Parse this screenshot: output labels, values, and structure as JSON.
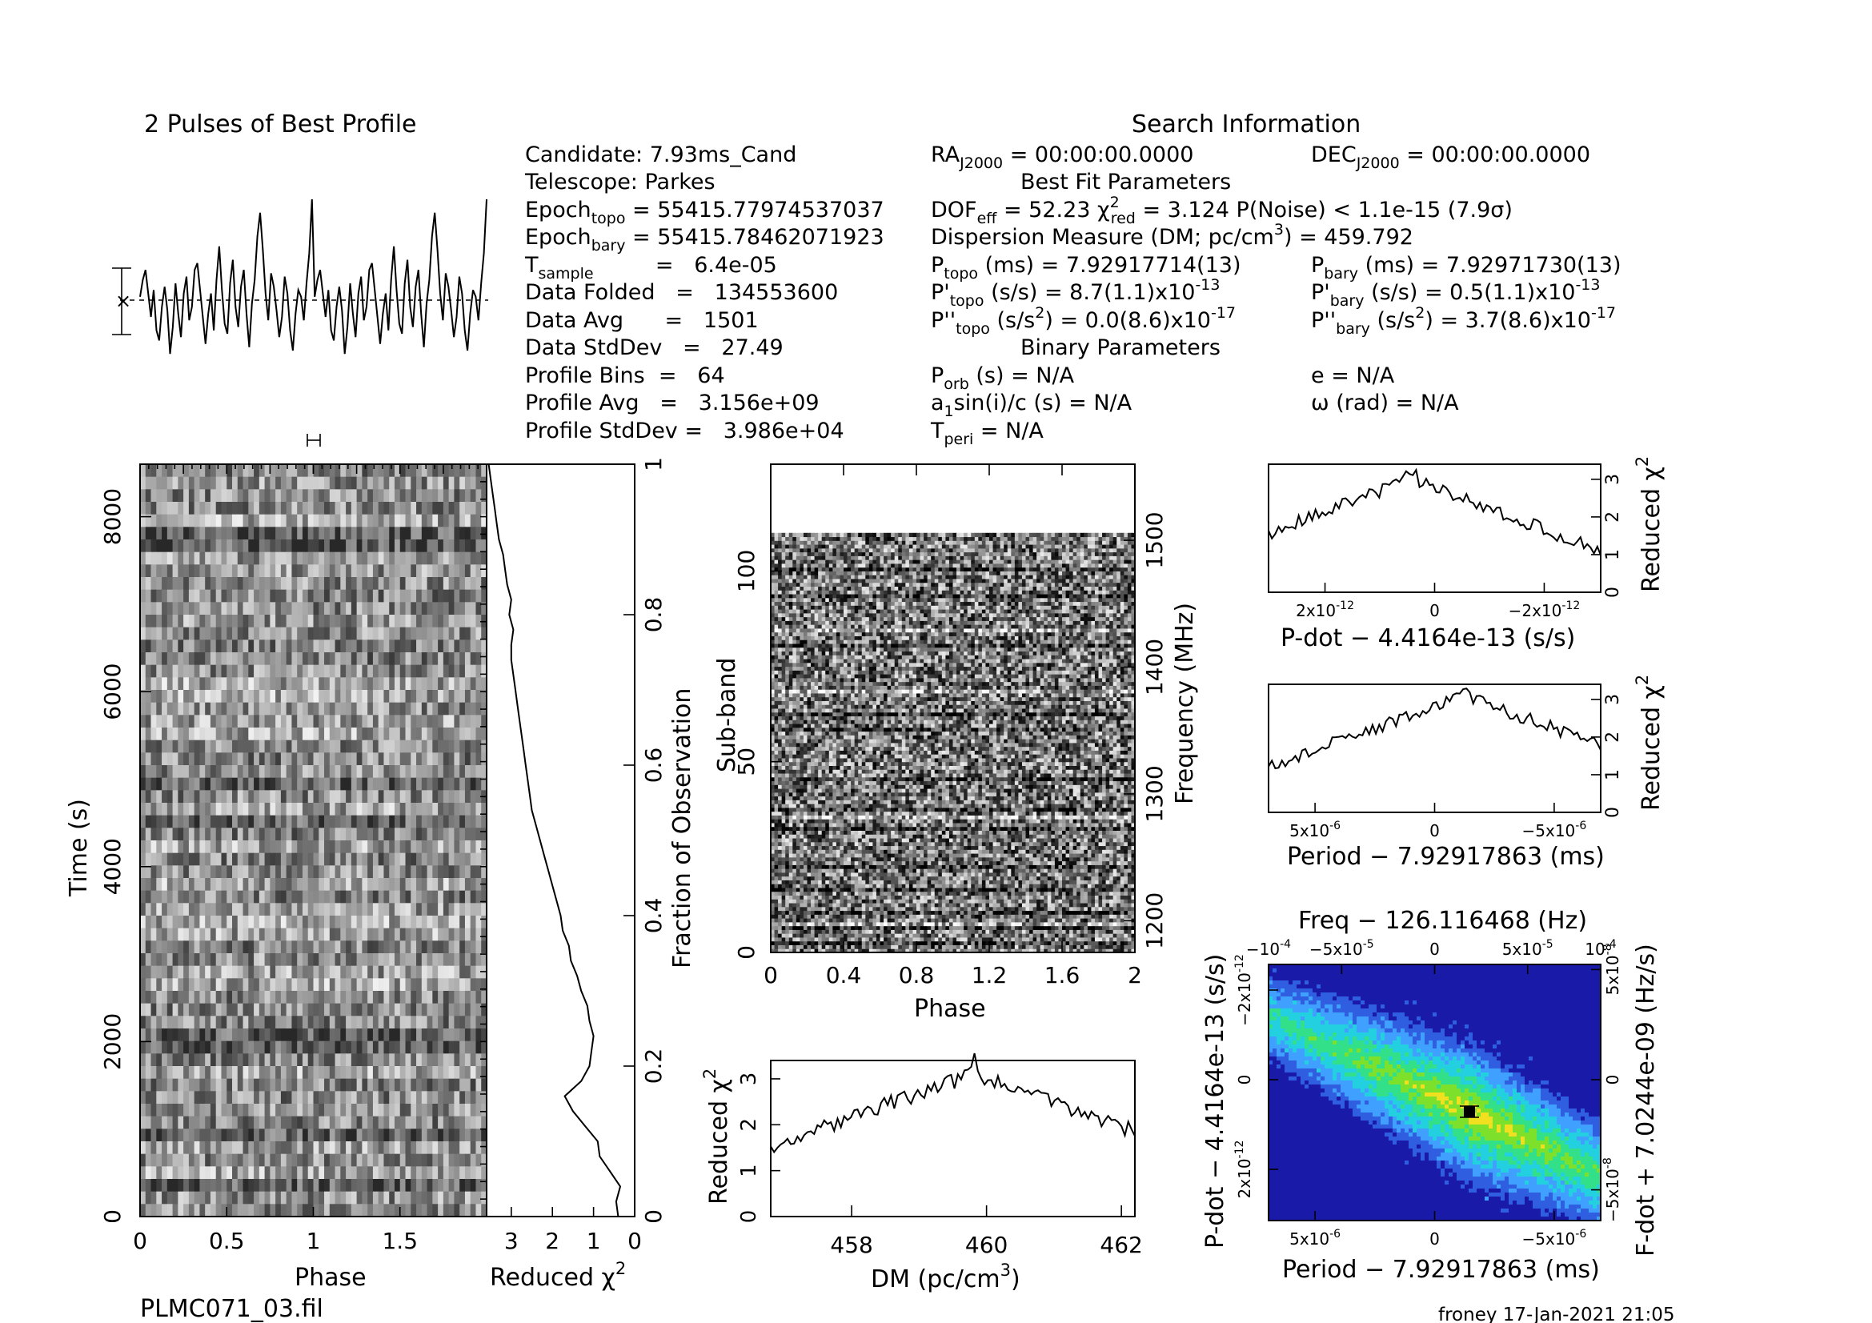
{
  "header": {
    "profile_title": "2 Pulses of Best Profile",
    "search_title": "Search Information",
    "best_fit_title": "Best Fit Parameters",
    "binary_title": "Binary Parameters",
    "filename": "PLMC071_03.fil",
    "footer_stamp": "froney 17-Jan-2021 21:05"
  },
  "info_left": [
    {
      "label": "Candidate:  7.93ms_Cand",
      "sub": ""
    },
    {
      "label": "Telescope:  Parkes",
      "sub": ""
    },
    {
      "label": "Epoch",
      "sub": "topo",
      "value": " = 55415.77974537037"
    },
    {
      "label": "Epoch",
      "sub": "bary",
      "value": " = 55415.78462071923"
    },
    {
      "label": "T",
      "sub": "sample",
      "value": "         =   6.4e-05"
    },
    {
      "label": "Data Folded",
      "sub": "",
      "value": "   =   134553600"
    },
    {
      "label": "Data Avg",
      "sub": "",
      "value": "      =   1501"
    },
    {
      "label": "Data StdDev",
      "sub": "",
      "value": "   =   27.49"
    },
    {
      "label": "Profile Bins",
      "sub": "",
      "value": "  =   64"
    },
    {
      "label": "Profile Avg",
      "sub": "",
      "value": "   =   3.156e+09"
    },
    {
      "label": "Profile StdDev",
      "sub": "",
      "value": " =   3.986e+04"
    }
  ],
  "info_right": {
    "ra": "RA",
    "ra_sub": "J2000",
    "ra_val": " = 00:00:00.0000",
    "dec": "DEC",
    "dec_sub": "J2000",
    "dec_val": " = 00:00:00.0000",
    "dof": "DOF",
    "dof_sub": "eff",
    "dof_val": " = 52.23  χ",
    "chi_sub": "red",
    "chi_val": " = 3.124  P(Noise) < 1.1e-15   (7.9σ)",
    "dm_line": "Dispersion Measure (DM; pc/cm",
    "dm_val": ") = 459.792",
    "ptopo": "P",
    "ptopo_sub": "topo",
    "ptopo_val": " (ms) =  7.92917714(13)",
    "pbary": "P",
    "pbary_sub": "bary",
    "pbary_val": " (ms) =  7.92971730(13)",
    "pdtopo": "P'",
    "pdtopo_sub": "topo",
    "pdtopo_val": " (s/s) =  8.7(1.1)x10",
    "pdtopo_exp": "-13",
    "pdbary": "P'",
    "pdbary_sub": "bary",
    "pdbary_val": " (s/s) =  0.5(1.1)x10",
    "pdbary_exp": "-13",
    "pddtopo": "P''",
    "pddtopo_sub": "topo",
    "pddtopo_val": " (s/s",
    "pddtopo_val2": ") = 0.0(8.6)x10",
    "pddtopo_exp": "-17",
    "pddbary": "P''",
    "pddbary_sub": "bary",
    "pddbary_val": " (s/s",
    "pddbary_val2": ") =  3.7(8.6)x10",
    "pddbary_exp": "-17",
    "porb": "P",
    "porb_sub": "orb",
    "porb_val": " (s) = N/A",
    "ecc": "e = N/A",
    "a1": "a",
    "a1_sub": "1",
    "a1_val": "sin(i)/c (s) = N/A",
    "omega": "ω (rad) = N/A",
    "tperi": "T",
    "tperi_sub": "peri",
    "tperi_val": " = N/A"
  },
  "chart_data": [
    {
      "id": "profile",
      "type": "line",
      "title": "2 Pulses of Best Profile",
      "x": "phase 0-2 (128 bins)",
      "note": "two repetitions of a 64-bin noisy profile",
      "values": [
        0.1,
        0.6,
        0.9,
        0.2,
        -0.5,
        0.3,
        -0.9,
        -1.2,
        -0.2,
        0.4,
        -0.3,
        -1.6,
        -0.8,
        0.5,
        -0.4,
        -1.1,
        0.2,
        0.7,
        -0.6,
        -0.2,
        0.9,
        1.1,
        0.3,
        -0.5,
        -1.3,
        -0.4,
        0.2,
        -0.9,
        0.6,
        1.6,
        0.3,
        -0.7,
        -1.0,
        0.5,
        1.2,
        -0.2,
        -0.8,
        0.4,
        0.9,
        -0.4,
        -1.4,
        -0.1,
        0.6,
        1.9,
        2.6,
        1.5,
        0.2,
        -0.6,
        0.8,
        0.4,
        -0.3,
        -1.1,
        -0.5,
        0.7,
        0.2,
        -0.9,
        -1.5,
        -0.4,
        0.3,
        0.1,
        -0.6,
        0.5,
        1.4,
        3.0
      ]
    },
    {
      "id": "time_phase",
      "type": "heatmap",
      "xlabel": "Phase",
      "ylabel": "Time (s)",
      "xticks": [
        "0",
        "0.5",
        "1",
        "1.5"
      ],
      "yticks": [
        "0",
        "2000",
        "4000",
        "6000",
        "8000"
      ],
      "xlim": [
        0,
        2
      ],
      "ylim": [
        0,
        8600
      ]
    },
    {
      "id": "time_chi",
      "type": "line",
      "xlabel": "Reduced χ",
      "xlabel_exp": "2",
      "ylabel": "Fraction of Observation",
      "xticks": [
        "3",
        "2",
        "1",
        "0"
      ],
      "yticks": [
        "0",
        "0.2",
        "0.4",
        "0.6",
        "0.8",
        "1"
      ],
      "xlim": [
        3.6,
        0
      ],
      "ylim": [
        0,
        1
      ],
      "fraction": [
        0.0,
        0.02,
        0.04,
        0.06,
        0.08,
        0.1,
        0.12,
        0.14,
        0.16,
        0.18,
        0.2,
        0.22,
        0.24,
        0.26,
        0.28,
        0.3,
        0.32,
        0.34,
        0.36,
        0.38,
        0.4,
        0.42,
        0.44,
        0.46,
        0.48,
        0.5,
        0.52,
        0.54,
        0.56,
        0.58,
        0.6,
        0.62,
        0.64,
        0.66,
        0.68,
        0.7,
        0.72,
        0.74,
        0.76,
        0.78,
        0.8,
        0.82,
        0.84,
        0.86,
        0.88,
        0.9,
        0.92,
        0.94,
        0.96,
        0.98,
        1.0
      ],
      "chi": [
        0.4,
        0.45,
        0.35,
        0.6,
        0.85,
        0.9,
        1.2,
        1.5,
        1.7,
        1.3,
        1.1,
        1.05,
        1.0,
        1.1,
        1.15,
        1.3,
        1.4,
        1.55,
        1.6,
        1.75,
        1.8,
        1.9,
        2.0,
        2.1,
        2.2,
        2.3,
        2.4,
        2.5,
        2.55,
        2.6,
        2.65,
        2.7,
        2.75,
        2.8,
        2.85,
        2.9,
        2.95,
        3.0,
        3.0,
        2.95,
        3.05,
        3.0,
        3.1,
        3.15,
        3.2,
        3.3,
        3.35,
        3.4,
        3.45,
        3.5,
        3.55
      ]
    },
    {
      "id": "subband_phase",
      "type": "heatmap",
      "xlabel": "Phase",
      "ylabel": "Sub-band",
      "ylabel_right": "Frequency (MHz)",
      "xticks": [
        "0",
        "0.4",
        "0.8",
        "1.2",
        "1.6",
        "2"
      ],
      "yticks": [
        "0",
        "50",
        "100"
      ],
      "yticks_right": [
        "1200",
        "1300",
        "1400",
        "1500"
      ],
      "xlim": [
        0,
        2
      ],
      "ylim": [
        0,
        128
      ],
      "filled_subbands": 110
    },
    {
      "id": "dm_curve",
      "type": "line",
      "xlabel": "DM (pc/cm",
      "xlabel_exp": "3",
      "xlabel_end": ")",
      "ylabel": "Reduced χ",
      "ylabel_exp": "2",
      "xticks": [
        "458",
        "460",
        "462"
      ],
      "yticks": [
        "0",
        "1",
        "2",
        "3"
      ],
      "xlim": [
        456.8,
        462.2
      ],
      "ylim": [
        0,
        3.4
      ],
      "peak_x": 459.8,
      "peak_y": 3.1,
      "edge_y": 1.55
    },
    {
      "id": "pdot_curve",
      "type": "line",
      "xlabel": "P-dot − 4.4164e-13 (s/s)",
      "ylabel": "Reduced χ",
      "ylabel_exp": "2",
      "xticks": [
        "2x10",
        "0",
        "−2x10"
      ],
      "xtick_exp": "-12",
      "yticks": [
        "0",
        "1",
        "2",
        "3"
      ],
      "ylim": [
        0,
        3.4
      ],
      "peak_frac": 0.43,
      "peak_y": 3.0,
      "edge_y": 1.1
    },
    {
      "id": "period_curve",
      "type": "line",
      "xlabel": "Period − 7.92917863 (ms)",
      "ylabel": "Reduced χ",
      "ylabel_exp": "2",
      "xticks": [
        "5x10",
        "0",
        "−5x10"
      ],
      "xtick_exp": "-6",
      "yticks": [
        "0",
        "1",
        "2",
        "3"
      ],
      "ylim": [
        0,
        3.4
      ],
      "peak_frac": 0.59,
      "peak_y": 3.1,
      "edge_y": 1.2
    },
    {
      "id": "ppdot_plane",
      "type": "heatmap",
      "title": "Freq − 126.116468 (Hz)",
      "xlabel": "Period − 7.92917863 (ms)",
      "ylabel": "P-dot − 4.4164e-13 (s/s)",
      "ylabel_right": "F-dot + 7.0244e-09 (Hz/s)",
      "top_ticks": [
        "−10",
        "−5x10",
        "0",
        "5x10",
        "10"
      ],
      "top_tick_exps": [
        "-4",
        "-5",
        "",
        "-5",
        "-4"
      ],
      "bottom_ticks": [
        "5x10",
        "0",
        "−5x10"
      ],
      "bottom_tick_exp": "-6",
      "left_ticks": [
        "2x10",
        "0",
        "−2x10"
      ],
      "left_tick_exp": "-12",
      "right_ticks": [
        "−5x10",
        "0",
        "5x10"
      ],
      "right_tick_exp": "-8",
      "colors": [
        "#1a1aa8",
        "#2f5fe0",
        "#3fa0ff",
        "#22d0e0",
        "#33e08a",
        "#7de02a",
        "#f0e020",
        "#ff8a00",
        "#d01818"
      ]
    }
  ]
}
